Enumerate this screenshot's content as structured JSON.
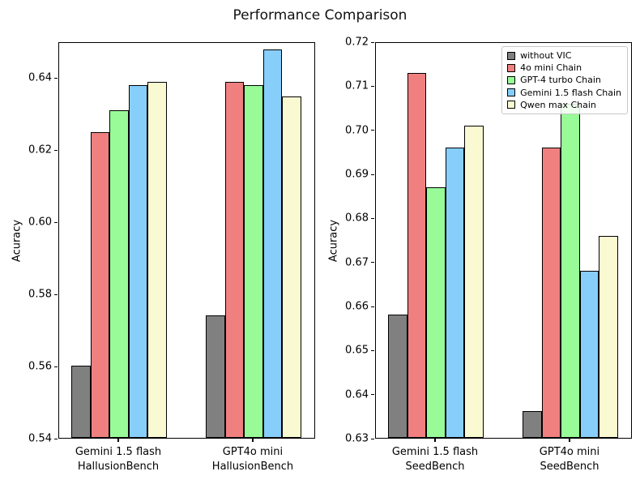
{
  "title": "Performance Comparison",
  "palette": {
    "without_vic": "#808080",
    "four_o_mini": "#F08080",
    "gpt4_turbo": "#98FB98",
    "gemini_15_flash": "#87CEFA",
    "qwen_max": "#FAFAD2",
    "bar_edge": "#000000"
  },
  "legend": {
    "position": "upper right",
    "entries": [
      "without VIC",
      "4o mini Chain",
      "GPT-4 turbo Chain",
      "Gemini 1.5 flash Chain",
      "Qwen max Chain"
    ]
  },
  "chart_data": [
    {
      "type": "bar",
      "title": "",
      "xlabel": "",
      "ylabel": "Acuracy",
      "ylim": [
        0.54,
        0.65
      ],
      "yticks": [
        "0.54",
        "0.56",
        "0.58",
        "0.60",
        "0.62",
        "0.64"
      ],
      "grid": false,
      "legend_visible": false,
      "categories": [
        "Gemini 1.5 flash\nHallusionBench",
        "GPT4o mini\nHallusionBench"
      ],
      "series": [
        {
          "name": "without VIC",
          "color": "#808080",
          "values": [
            0.56,
            0.574
          ]
        },
        {
          "name": "4o mini Chain",
          "color": "#F08080",
          "values": [
            0.625,
            0.639
          ]
        },
        {
          "name": "GPT-4 turbo Chain",
          "color": "#98FB98",
          "values": [
            0.631,
            0.638
          ]
        },
        {
          "name": "Gemini 1.5 flash Chain",
          "color": "#87CEFA",
          "values": [
            0.638,
            0.648
          ]
        },
        {
          "name": "Qwen max Chain",
          "color": "#FAFAD2",
          "values": [
            0.639,
            0.635
          ]
        }
      ]
    },
    {
      "type": "bar",
      "title": "",
      "xlabel": "",
      "ylabel": "Acuracy",
      "ylim": [
        0.63,
        0.72
      ],
      "yticks": [
        "0.63",
        "0.64",
        "0.65",
        "0.66",
        "0.67",
        "0.68",
        "0.69",
        "0.70",
        "0.71",
        "0.72"
      ],
      "grid": false,
      "legend_visible": true,
      "legend_position": "upper right",
      "categories": [
        "Gemini 1.5 flash\nSeedBench",
        "GPT4o mini\nSeedBench"
      ],
      "series": [
        {
          "name": "without VIC",
          "color": "#808080",
          "values": [
            0.658,
            0.636
          ]
        },
        {
          "name": "4o mini Chain",
          "color": "#F08080",
          "values": [
            0.713,
            0.696
          ]
        },
        {
          "name": "GPT-4 turbo Chain",
          "color": "#98FB98",
          "values": [
            0.687,
            0.706
          ]
        },
        {
          "name": "Gemini 1.5 flash Chain",
          "color": "#87CEFA",
          "values": [
            0.696,
            0.668
          ]
        },
        {
          "name": "Qwen max Chain",
          "color": "#FAFAD2",
          "values": [
            0.701,
            0.676
          ]
        }
      ]
    }
  ]
}
